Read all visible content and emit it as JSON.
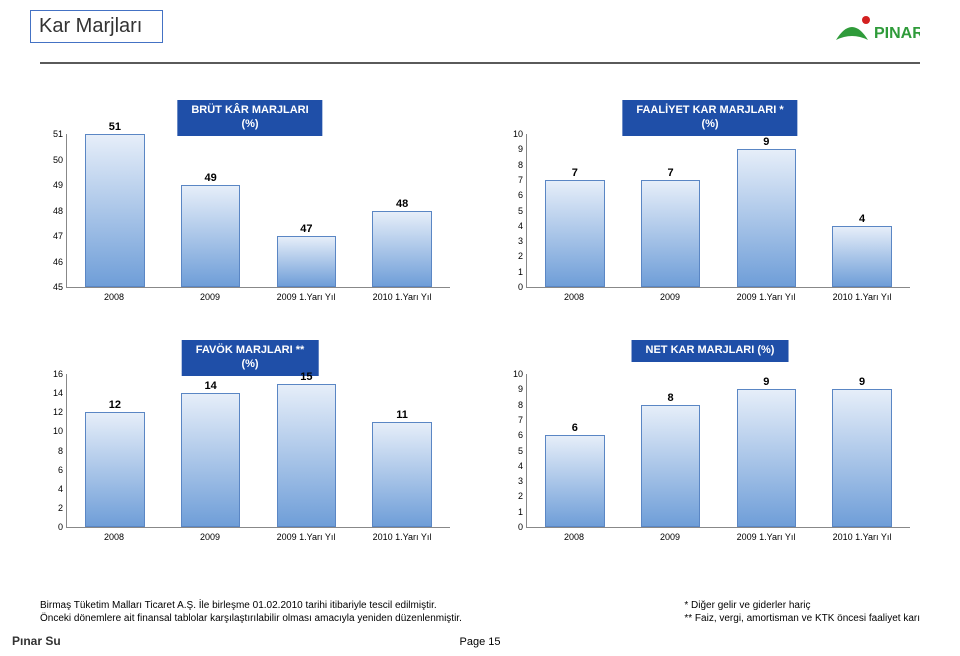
{
  "title": "Kar Marjları",
  "logo_label": "PINAR",
  "charts": [
    {
      "title": "BRÜT KÂR MARJLARI\n(%)",
      "categories": [
        "2008",
        "2009",
        "2009 1.Yarı Yıl",
        "2010 1.Yarı Yıl"
      ],
      "values": [
        51,
        49,
        47,
        48
      ],
      "ylim": [
        45,
        51
      ],
      "ytick_step": 1,
      "bar_fill_top": "#e6eef9",
      "bar_fill_bottom": "#6f9ed8",
      "bar_border": "#5a86c4",
      "title_bg": "#1f4fa8",
      "title_color": "#ffffff"
    },
    {
      "title": "FAALİYET KAR MARJLARI *\n(%)",
      "categories": [
        "2008",
        "2009",
        "2009 1.Yarı Yıl",
        "2010 1.Yarı Yıl"
      ],
      "values": [
        7,
        7,
        9,
        4
      ],
      "ylim": [
        0,
        10
      ],
      "ytick_step": 1,
      "bar_fill_top": "#e6eef9",
      "bar_fill_bottom": "#6f9ed8",
      "bar_border": "#5a86c4",
      "title_bg": "#1f4fa8",
      "title_color": "#ffffff"
    },
    {
      "title": "FAVÖK MARJLARI **\n(%)",
      "categories": [
        "2008",
        "2009",
        "2009 1.Yarı Yıl",
        "2010 1.Yarı Yıl"
      ],
      "values": [
        12,
        14,
        15,
        11
      ],
      "ylim": [
        0,
        16
      ],
      "ytick_step": 2,
      "bar_fill_top": "#e6eef9",
      "bar_fill_bottom": "#6f9ed8",
      "bar_border": "#5a86c4",
      "title_bg": "#1f4fa8",
      "title_color": "#ffffff"
    },
    {
      "title": "NET KAR MARJLARI (%)",
      "categories": [
        "2008",
        "2009",
        "2009 1.Yarı Yıl",
        "2010 1.Yarı Yıl"
      ],
      "values": [
        6,
        8,
        9,
        9
      ],
      "ylim": [
        0,
        10
      ],
      "ytick_step": 1,
      "bar_fill_top": "#e6eef9",
      "bar_fill_bottom": "#6f9ed8",
      "bar_border": "#5a86c4",
      "title_bg": "#1f4fa8",
      "title_color": "#ffffff"
    }
  ],
  "footnotes": {
    "left": [
      "Birmaş Tüketim Malları Ticaret A.Ş. İle birleşme 01.02.2010 tarihi itibariyle tescil edilmiştir.",
      "Önceki dönemlere ait finansal tablolar karşılaştırılabilir olması amacıyla yeniden düzenlenmiştir."
    ],
    "right": [
      "* Diğer gelir ve giderler hariç",
      "** Faiz, vergi, amortisman ve KTK öncesi faaliyet karı"
    ]
  },
  "footer_brand": "Pınar Su",
  "page_number": "Page 15"
}
